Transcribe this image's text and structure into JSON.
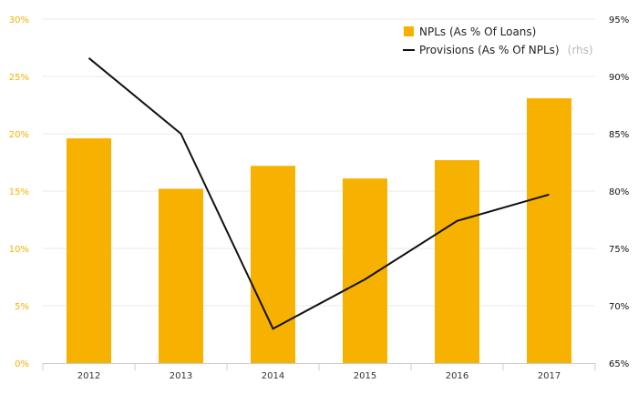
{
  "chart_data": {
    "type": "bar",
    "categories": [
      "2012",
      "2013",
      "2014",
      "2015",
      "2016",
      "2017"
    ],
    "series": [
      {
        "name": "NPLs (As % Of Loans)",
        "type": "bar",
        "axis": "left",
        "values": [
          19.6,
          15.2,
          17.2,
          16.1,
          17.7,
          23.1
        ],
        "color": "#f7b100"
      },
      {
        "name": "Provisions (As % Of NPLs)",
        "type": "line",
        "axis": "right",
        "values": [
          91.6,
          85.0,
          68.0,
          72.3,
          77.4,
          79.7
        ],
        "color": "#111111"
      }
    ],
    "left_axis": {
      "min": 0,
      "max": 30,
      "step": 5,
      "tick_suffix": "%",
      "tick_color": "#f7b100"
    },
    "right_axis": {
      "min": 65,
      "max": 95,
      "step": 5,
      "tick_suffix": "%",
      "tick_color": "#111111"
    },
    "legend": {
      "position": "top-right",
      "items": [
        {
          "label": "NPLs (As % Of Loans)",
          "suffix": ""
        },
        {
          "label": "Provisions (As % Of NPLs)",
          "suffix": "(rhs)"
        }
      ]
    },
    "grid": true
  }
}
